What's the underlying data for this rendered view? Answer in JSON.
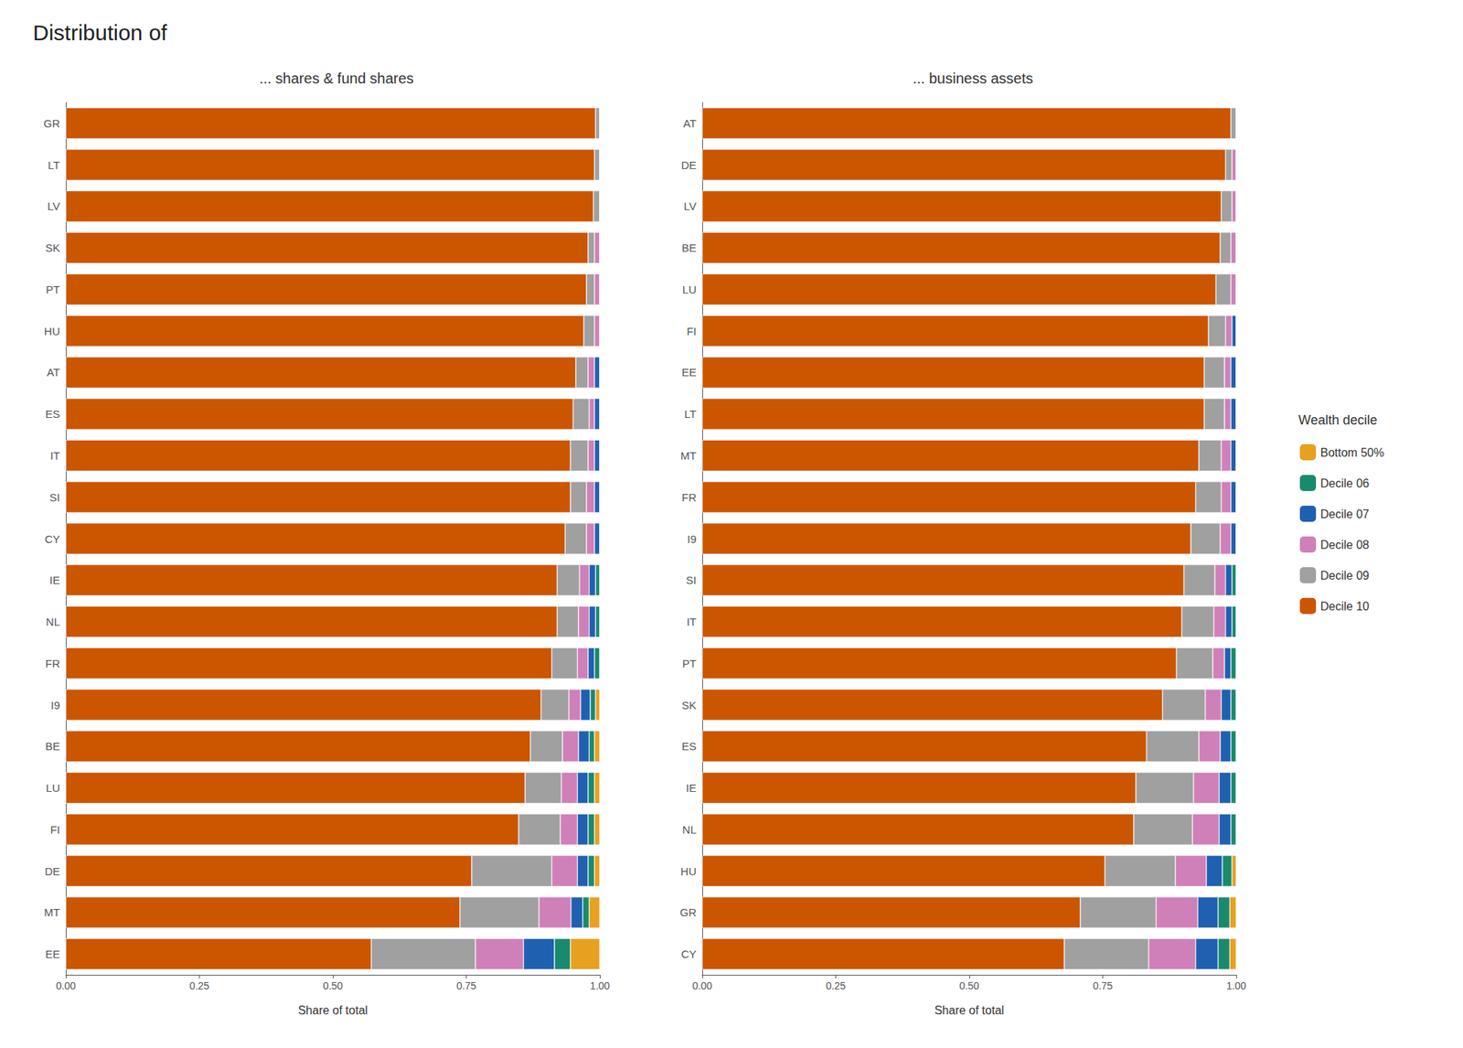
{
  "title": "Distribution of",
  "legend_title": "Wealth decile",
  "chart_data": [
    {
      "type": "bar",
      "orientation": "horizontal",
      "stacked": true,
      "grid": false,
      "legend": "right",
      "title": "... shares & fund shares",
      "xlabel": "Share of total",
      "xlim": [
        0,
        1
      ],
      "xticks": [
        {
          "value": 0,
          "label": "0.00"
        },
        {
          "value": 0.25,
          "label": "0.25"
        },
        {
          "value": 0.5,
          "label": "0.50"
        },
        {
          "value": 0.75,
          "label": "0.75"
        },
        {
          "value": 1,
          "label": "1.00"
        }
      ],
      "categories": [
        "GR",
        "LT",
        "LV",
        "SK",
        "PT",
        "HU",
        "AT",
        "ES",
        "IT",
        "SI",
        "CY",
        "IE",
        "NL",
        "FR",
        "I9",
        "BE",
        "LU",
        "FI",
        "DE",
        "MT",
        "EE"
      ],
      "series": [
        {
          "name": "Bottom 50%",
          "color": "#E8A020",
          "values": [
            0.0,
            0.0,
            0.0,
            0.0,
            0.0,
            0.0,
            0.0,
            0.0,
            0.0,
            0.0,
            0.0,
            0.0,
            0.0,
            0.0,
            0.008,
            0.01,
            0.01,
            0.01,
            0.01,
            0.02,
            0.055
          ]
        },
        {
          "name": "Decile 06",
          "color": "#1A8A6E",
          "values": [
            0.0,
            0.0,
            0.0,
            0.0,
            0.0,
            0.0,
            0.0,
            0.0,
            0.0,
            0.0,
            0.0,
            0.008,
            0.008,
            0.01,
            0.01,
            0.01,
            0.012,
            0.012,
            0.012,
            0.012,
            0.03
          ]
        },
        {
          "name": "Decile 07",
          "color": "#2060B0",
          "values": [
            0.0,
            0.0,
            0.0,
            0.0,
            0.0,
            0.0,
            0.01,
            0.01,
            0.01,
            0.01,
            0.01,
            0.012,
            0.012,
            0.012,
            0.018,
            0.02,
            0.02,
            0.02,
            0.02,
            0.022,
            0.058
          ]
        },
        {
          "name": "Decile 08",
          "color": "#D080B8",
          "values": [
            0.0,
            0.0,
            0.0,
            0.01,
            0.01,
            0.01,
            0.012,
            0.01,
            0.012,
            0.015,
            0.015,
            0.018,
            0.02,
            0.02,
            0.022,
            0.03,
            0.03,
            0.032,
            0.048,
            0.06,
            0.09
          ]
        },
        {
          "name": "Decile 09",
          "color": "#A0A0A0",
          "values": [
            0.008,
            0.01,
            0.012,
            0.012,
            0.015,
            0.02,
            0.023,
            0.03,
            0.033,
            0.03,
            0.04,
            0.042,
            0.04,
            0.048,
            0.052,
            0.06,
            0.068,
            0.078,
            0.15,
            0.148,
            0.195
          ]
        },
        {
          "name": "Decile 10",
          "color": "#CC5500",
          "values": [
            0.992,
            0.99,
            0.988,
            0.978,
            0.975,
            0.97,
            0.955,
            0.95,
            0.945,
            0.945,
            0.935,
            0.92,
            0.92,
            0.91,
            0.89,
            0.87,
            0.86,
            0.848,
            0.76,
            0.738,
            0.572
          ]
        }
      ]
    },
    {
      "type": "bar",
      "orientation": "horizontal",
      "stacked": true,
      "grid": false,
      "legend": "right",
      "title": "... business assets",
      "xlabel": "Share of total",
      "xlim": [
        0,
        1
      ],
      "xticks": [
        {
          "value": 0,
          "label": "0.00"
        },
        {
          "value": 0.25,
          "label": "0.25"
        },
        {
          "value": 0.5,
          "label": "0.50"
        },
        {
          "value": 0.75,
          "label": "0.75"
        },
        {
          "value": 1,
          "label": "1.00"
        }
      ],
      "categories": [
        "AT",
        "DE",
        "LV",
        "BE",
        "LU",
        "FI",
        "EE",
        "LT",
        "MT",
        "FR",
        "I9",
        "SI",
        "IT",
        "PT",
        "SK",
        "ES",
        "IE",
        "NL",
        "HU",
        "GR",
        "CY"
      ],
      "series": [
        {
          "name": "Bottom 50%",
          "color": "#E8A020",
          "values": [
            0.0,
            0.0,
            0.0,
            0.0,
            0.0,
            0.0,
            0.0,
            0.0,
            0.0,
            0.0,
            0.0,
            0.0,
            0.0,
            0.0,
            0.0,
            0.0,
            0.0,
            0.0,
            0.008,
            0.012,
            0.012
          ]
        },
        {
          "name": "Decile 06",
          "color": "#1A8A6E",
          "values": [
            0.0,
            0.0,
            0.0,
            0.0,
            0.0,
            0.0,
            0.0,
            0.0,
            0.0,
            0.0,
            0.0,
            0.008,
            0.008,
            0.01,
            0.01,
            0.01,
            0.01,
            0.01,
            0.018,
            0.022,
            0.022
          ]
        },
        {
          "name": "Decile 07",
          "color": "#2060B0",
          "values": [
            0.0,
            0.0,
            0.0,
            0.0,
            0.0,
            0.008,
            0.01,
            0.01,
            0.01,
            0.01,
            0.01,
            0.012,
            0.012,
            0.012,
            0.018,
            0.02,
            0.022,
            0.022,
            0.03,
            0.038,
            0.042
          ]
        },
        {
          "name": "Decile 08",
          "color": "#D080B8",
          "values": [
            0.0,
            0.008,
            0.008,
            0.01,
            0.01,
            0.012,
            0.012,
            0.012,
            0.018,
            0.018,
            0.02,
            0.02,
            0.022,
            0.022,
            0.03,
            0.04,
            0.048,
            0.05,
            0.058,
            0.078,
            0.088
          ]
        },
        {
          "name": "Decile 09",
          "color": "#A0A0A0",
          "values": [
            0.01,
            0.012,
            0.02,
            0.02,
            0.028,
            0.032,
            0.038,
            0.038,
            0.042,
            0.048,
            0.055,
            0.058,
            0.06,
            0.068,
            0.08,
            0.098,
            0.108,
            0.11,
            0.132,
            0.142,
            0.158
          ]
        },
        {
          "name": "Decile 10",
          "color": "#CC5500",
          "values": [
            0.99,
            0.98,
            0.972,
            0.97,
            0.962,
            0.948,
            0.94,
            0.94,
            0.93,
            0.924,
            0.915,
            0.902,
            0.898,
            0.888,
            0.862,
            0.832,
            0.812,
            0.808,
            0.754,
            0.708,
            0.678
          ]
        }
      ]
    }
  ]
}
